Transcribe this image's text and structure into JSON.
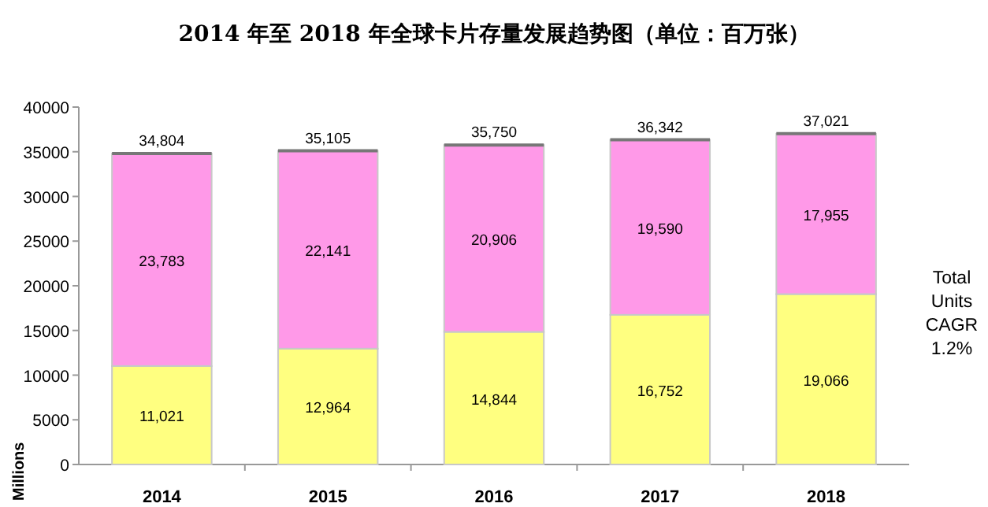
{
  "chart_data": {
    "type": "bar",
    "title": "2014 年至 2018 年全球卡片存量发展趋势图（单位：百万张）",
    "ylabel": "Millions",
    "categories": [
      "2014",
      "2015",
      "2016",
      "2017",
      "2018"
    ],
    "stacked": true,
    "series": [
      {
        "color": "#ffff80",
        "values": [
          11021,
          12964,
          14844,
          16752,
          19066
        ],
        "value_labels": [
          "11,021",
          "12,964",
          "14,844",
          "16,752",
          "19,066"
        ]
      },
      {
        "color": "#ff99e8",
        "values": [
          23783,
          22141,
          20906,
          19590,
          17955
        ],
        "value_labels": [
          "23,783",
          "22,141",
          "20,906",
          "19,590",
          "17,955"
        ]
      }
    ],
    "totals": [
      "34,804",
      "35,105",
      "35,750",
      "36,342",
      "37,021"
    ],
    "ylim": [
      0,
      40000
    ],
    "yticks": [
      0,
      5000,
      10000,
      15000,
      20000,
      25000,
      30000,
      35000,
      40000
    ],
    "annotations": [
      "Total Units CAGR 1.2%"
    ]
  }
}
